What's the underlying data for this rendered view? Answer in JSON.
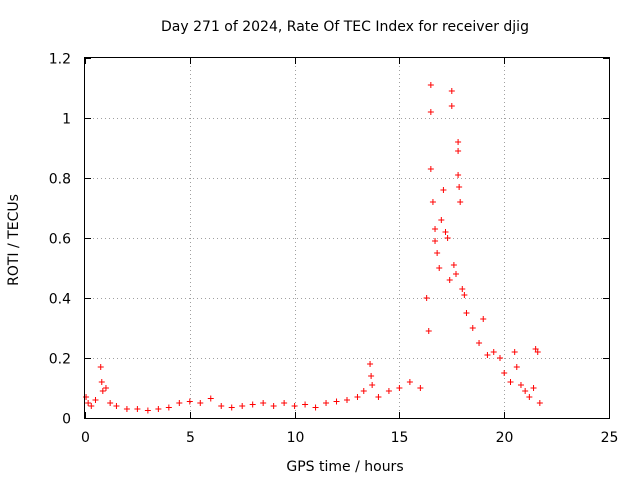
{
  "chart_data": {
    "type": "scatter",
    "title": "Day 271 of 2024, Rate Of TEC Index for receiver djig",
    "xlabel": "GPS time / hours",
    "ylabel": "ROTI / TECUs",
    "xlim": [
      0,
      25
    ],
    "ylim": [
      0,
      1.2
    ],
    "grid": true,
    "x_ticks": [
      0,
      5,
      10,
      15,
      20,
      25
    ],
    "x_tick_labels": [
      "0",
      "5",
      "10",
      "15",
      "20",
      "25"
    ],
    "y_ticks": [
      0,
      0.2,
      0.4,
      0.6,
      0.8,
      1.0,
      1.2
    ],
    "y_tick_labels": [
      "0",
      "0.2",
      "0.4",
      "0.6",
      "0.8",
      "1",
      "1.2"
    ],
    "marker": "+",
    "color": "#ff0000",
    "series": [
      {
        "name": "ROTI",
        "points": [
          [
            0.05,
            0.07
          ],
          [
            0.15,
            0.05
          ],
          [
            0.3,
            0.04
          ],
          [
            0.5,
            0.06
          ],
          [
            0.75,
            0.17
          ],
          [
            0.8,
            0.12
          ],
          [
            0.85,
            0.09
          ],
          [
            1.0,
            0.1
          ],
          [
            1.2,
            0.05
          ],
          [
            1.5,
            0.04
          ],
          [
            2.0,
            0.03
          ],
          [
            2.5,
            0.03
          ],
          [
            3.0,
            0.025
          ],
          [
            3.5,
            0.03
          ],
          [
            4.0,
            0.035
          ],
          [
            4.5,
            0.05
          ],
          [
            5.0,
            0.055
          ],
          [
            5.5,
            0.05
          ],
          [
            6.0,
            0.065
          ],
          [
            6.5,
            0.04
          ],
          [
            7.0,
            0.035
          ],
          [
            7.5,
            0.04
          ],
          [
            8.0,
            0.045
          ],
          [
            8.5,
            0.05
          ],
          [
            9.0,
            0.04
          ],
          [
            9.5,
            0.05
          ],
          [
            10.0,
            0.04
          ],
          [
            10.5,
            0.045
          ],
          [
            11.0,
            0.035
          ],
          [
            11.5,
            0.05
          ],
          [
            12.0,
            0.055
          ],
          [
            12.5,
            0.06
          ],
          [
            13.0,
            0.07
          ],
          [
            13.3,
            0.09
          ],
          [
            13.6,
            0.18
          ],
          [
            13.65,
            0.14
          ],
          [
            13.7,
            0.11
          ],
          [
            14.0,
            0.07
          ],
          [
            14.5,
            0.09
          ],
          [
            15.0,
            0.1
          ],
          [
            15.5,
            0.12
          ],
          [
            16.0,
            0.1
          ],
          [
            16.3,
            0.4
          ],
          [
            16.4,
            0.29
          ],
          [
            16.5,
            1.11
          ],
          [
            16.5,
            1.02
          ],
          [
            16.5,
            0.83
          ],
          [
            16.6,
            0.72
          ],
          [
            16.7,
            0.63
          ],
          [
            16.7,
            0.59
          ],
          [
            16.8,
            0.55
          ],
          [
            16.9,
            0.5
          ],
          [
            17.0,
            0.66
          ],
          [
            17.1,
            0.76
          ],
          [
            17.2,
            0.62
          ],
          [
            17.3,
            0.6
          ],
          [
            17.4,
            0.46
          ],
          [
            17.5,
            1.09
          ],
          [
            17.5,
            1.04
          ],
          [
            17.6,
            0.51
          ],
          [
            17.7,
            0.48
          ],
          [
            17.8,
            0.92
          ],
          [
            17.8,
            0.89
          ],
          [
            17.8,
            0.81
          ],
          [
            17.85,
            0.77
          ],
          [
            17.9,
            0.72
          ],
          [
            18.0,
            0.43
          ],
          [
            18.1,
            0.41
          ],
          [
            18.2,
            0.35
          ],
          [
            18.5,
            0.3
          ],
          [
            18.8,
            0.25
          ],
          [
            19.0,
            0.33
          ],
          [
            19.2,
            0.21
          ],
          [
            19.5,
            0.22
          ],
          [
            19.8,
            0.2
          ],
          [
            20.0,
            0.15
          ],
          [
            20.3,
            0.12
          ],
          [
            20.5,
            0.22
          ],
          [
            20.6,
            0.17
          ],
          [
            20.8,
            0.11
          ],
          [
            21.0,
            0.09
          ],
          [
            21.2,
            0.07
          ],
          [
            21.4,
            0.1
          ],
          [
            21.5,
            0.23
          ],
          [
            21.6,
            0.22
          ],
          [
            21.7,
            0.05
          ]
        ]
      }
    ]
  }
}
